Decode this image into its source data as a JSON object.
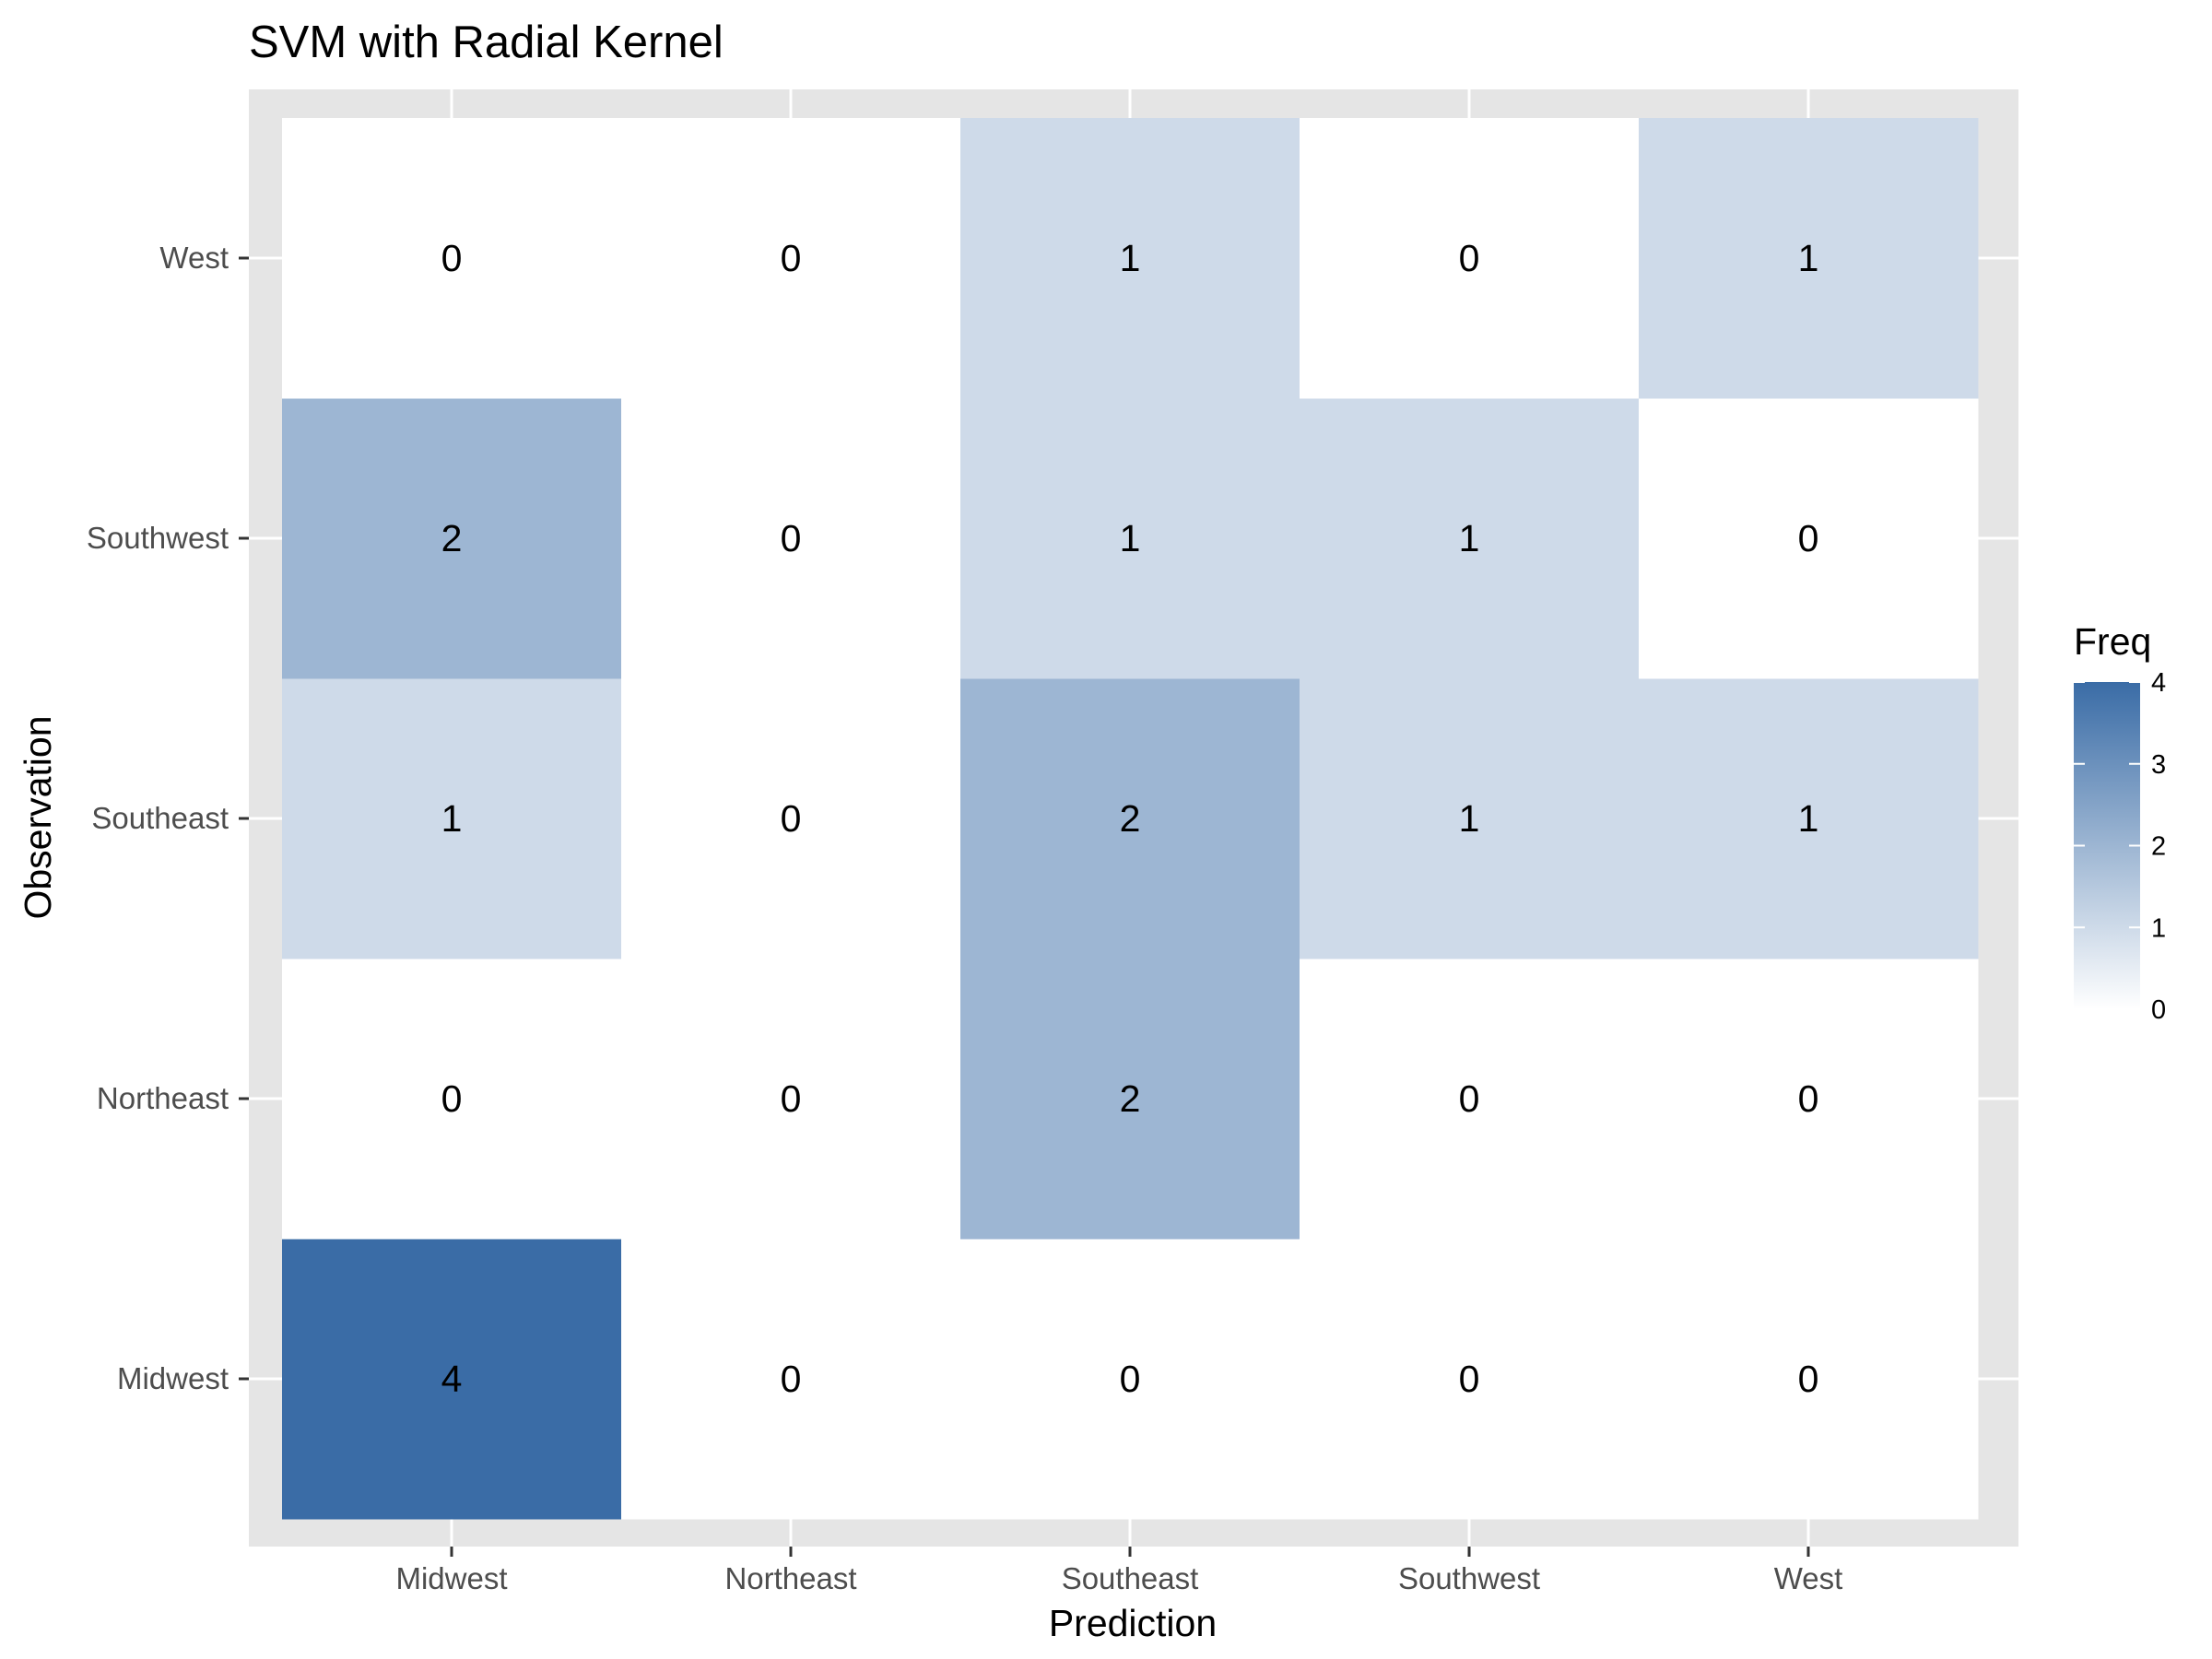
{
  "chart_data": {
    "type": "heatmap",
    "title": "SVM with Radial Kernel",
    "xlabel": "Prediction",
    "ylabel": "Observation",
    "x_categories": [
      "Midwest",
      "Northeast",
      "Southeast",
      "Southwest",
      "West"
    ],
    "y_categories": [
      "Midwest",
      "Northeast",
      "Southeast",
      "Southwest",
      "West"
    ],
    "values": [
      [
        4,
        0,
        0,
        0,
        0
      ],
      [
        0,
        0,
        2,
        0,
        0
      ],
      [
        1,
        0,
        2,
        1,
        1
      ],
      [
        2,
        0,
        1,
        1,
        0
      ],
      [
        0,
        0,
        1,
        0,
        1
      ]
    ],
    "legend": {
      "title": "Freq",
      "ticks": [
        0,
        1,
        2,
        3,
        4
      ],
      "range": [
        0,
        4
      ],
      "placement": "right"
    },
    "colors": {
      "low": "#ffffff",
      "high": "#3a6ca6",
      "panel_background": "#e5e5e5",
      "grid": "#ffffff"
    },
    "grid": true
  }
}
